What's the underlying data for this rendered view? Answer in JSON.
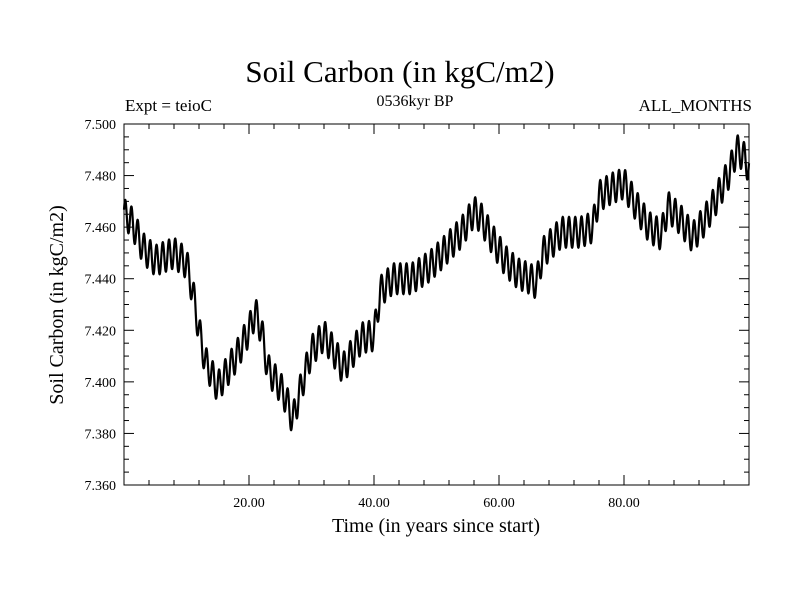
{
  "chart_data": {
    "type": "line",
    "title": "Soil Carbon (in kgC/m2)",
    "subtitle_left": "Expt = teioC",
    "subtitle_center": "0536kyr BP",
    "subtitle_right": "ALL_MONTHS",
    "xlabel": "Time (in years since start)",
    "ylabel": "Soil Carbon (in kgC/m2)",
    "xlim": [
      0,
      100
    ],
    "ylim": [
      7.36,
      7.5
    ],
    "xticks": [
      20,
      40,
      60,
      80
    ],
    "xtick_labels": [
      "20.00",
      "40.00",
      "60.00",
      "80.00"
    ],
    "yticks": [
      7.36,
      7.38,
      7.4,
      7.42,
      7.44,
      7.46,
      7.48,
      7.5
    ],
    "ytick_labels": [
      "7.360",
      "7.380",
      "7.400",
      "7.420",
      "7.440",
      "7.460",
      "7.480",
      "7.500"
    ],
    "seasonal_amplitude": 0.006,
    "series": [
      {
        "name": "Soil Carbon",
        "x": [
          0,
          1,
          2,
          3,
          5,
          8,
          10,
          11,
          12,
          13,
          15,
          18,
          20,
          21,
          22,
          23,
          25,
          26,
          27,
          28,
          30,
          32,
          34,
          35,
          38,
          40,
          41,
          43,
          46,
          49,
          51,
          54,
          56,
          57,
          59,
          61,
          63,
          65,
          66,
          67,
          70,
          73,
          75,
          76,
          78,
          80,
          82,
          84,
          86,
          87,
          89,
          91,
          93,
          95,
          97,
          98,
          99,
          100
        ],
        "y": [
          7.465,
          7.463,
          7.458,
          7.452,
          7.447,
          7.45,
          7.446,
          7.435,
          7.42,
          7.408,
          7.398,
          7.41,
          7.42,
          7.427,
          7.42,
          7.405,
          7.398,
          7.393,
          7.385,
          7.395,
          7.412,
          7.418,
          7.41,
          7.405,
          7.417,
          7.418,
          7.435,
          7.44,
          7.44,
          7.445,
          7.45,
          7.458,
          7.466,
          7.464,
          7.455,
          7.447,
          7.442,
          7.44,
          7.438,
          7.45,
          7.458,
          7.458,
          7.46,
          7.472,
          7.475,
          7.477,
          7.468,
          7.46,
          7.457,
          7.468,
          7.463,
          7.456,
          7.463,
          7.472,
          7.482,
          7.49,
          7.488,
          7.483
        ]
      }
    ]
  }
}
